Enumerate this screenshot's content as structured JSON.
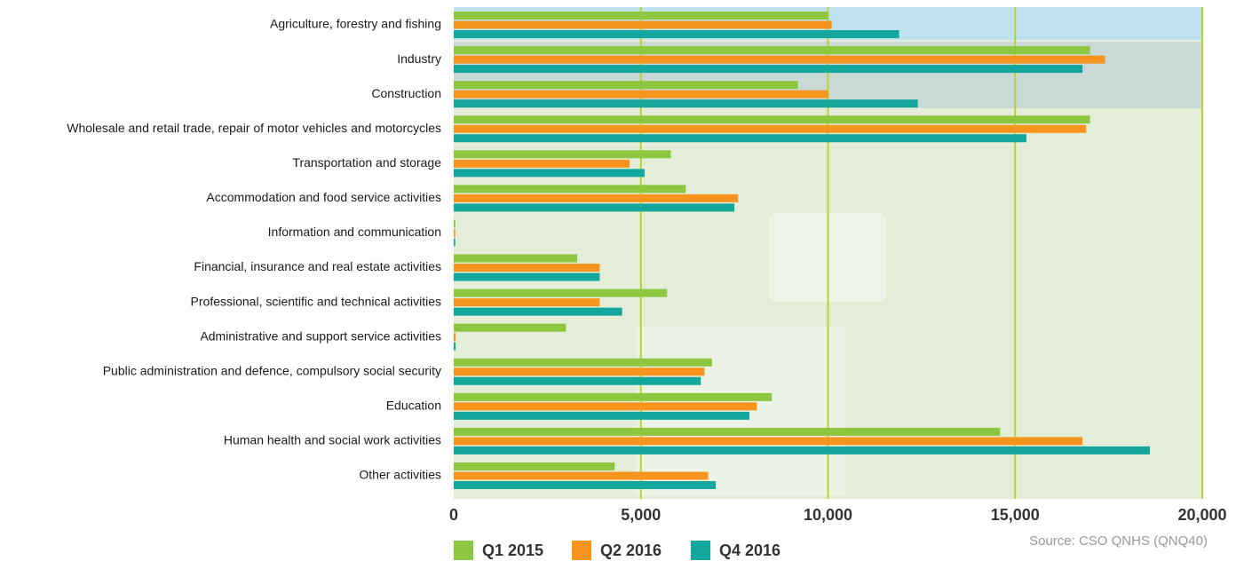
{
  "chart_data": {
    "type": "bar",
    "orientation": "horizontal",
    "categories": [
      "Agriculture, forestry and fishing",
      "Industry",
      "Construction",
      "Wholesale and retail trade, repair of motor vehicles and motorcycles",
      "Transportation and storage",
      "Accommodation and food service activities",
      "Information and communication",
      "Financial, insurance and real estate activities",
      "Professional, scientific and technical activities",
      "Administrative and support service activities",
      "Public administration and defence, compulsory social security",
      "Education",
      "Human health and social work activities",
      "Other activities"
    ],
    "series": [
      {
        "name": "Q1 2015",
        "color": "#8dc63f",
        "values": [
          10000,
          17000,
          9200,
          17000,
          5800,
          6200,
          40,
          3300,
          5700,
          3000,
          6900,
          8500,
          14600,
          4300
        ]
      },
      {
        "name": "Q2 2016",
        "color": "#f7941d",
        "values": [
          10100,
          17400,
          10000,
          16900,
          4700,
          7600,
          40,
          3900,
          3900,
          50,
          6700,
          8100,
          16800,
          6800
        ]
      },
      {
        "name": "Q4 2016",
        "color": "#14a79d",
        "values": [
          11900,
          16800,
          12400,
          15300,
          5100,
          7500,
          40,
          3900,
          4500,
          50,
          6600,
          7900,
          18600,
          7000
        ]
      }
    ],
    "xlim": [
      0,
      20000
    ],
    "xticks": [
      0,
      {
        "value": 5000,
        "label": "5,000"
      },
      {
        "value": 10000,
        "label": "10,000"
      },
      {
        "value": 15000,
        "label": "15,000"
      },
      {
        "value": 20000,
        "label": "20,000"
      }
    ],
    "grid": true,
    "source": "Source: CSO QNHS (QNQ40)"
  }
}
